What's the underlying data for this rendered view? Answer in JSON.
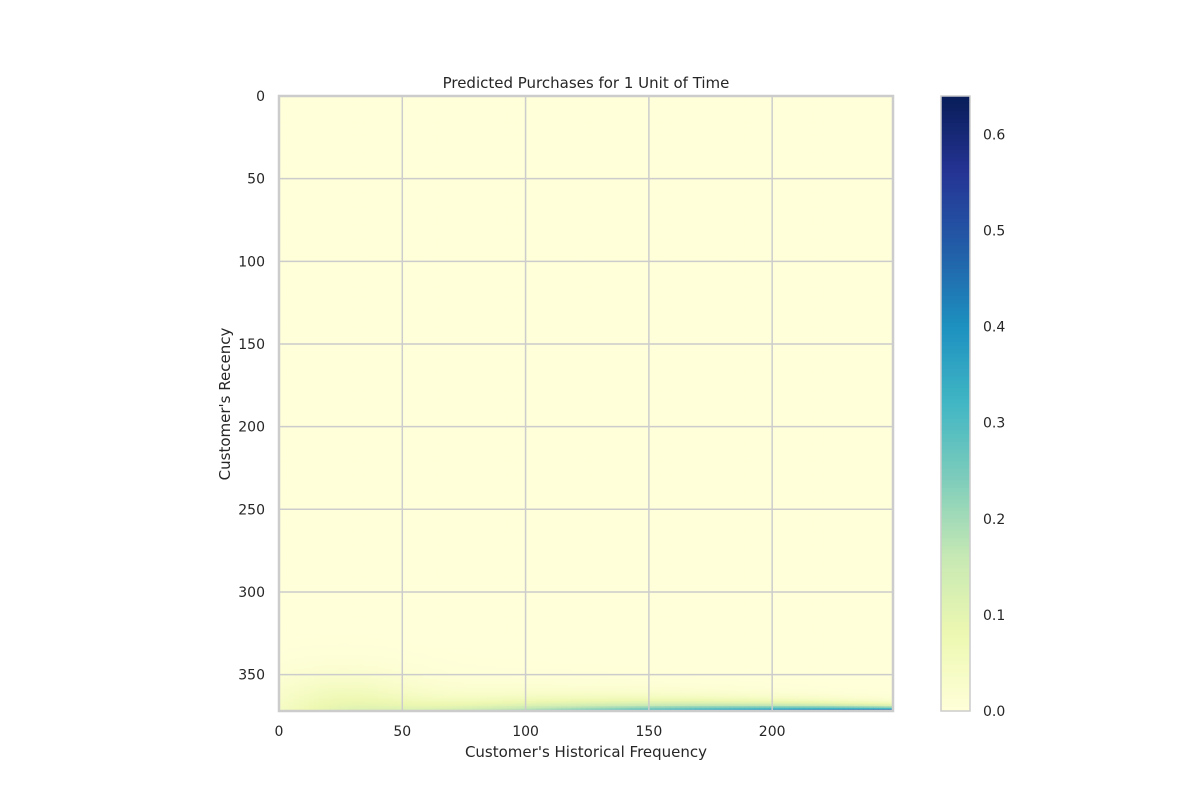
{
  "chart_data": {
    "type": "heatmap",
    "title": "Predicted Purchases for 1 Unit of Time",
    "xlabel": "Customer's Historical Frequency",
    "ylabel": "Customer's Recency",
    "xlim": [
      0,
      249
    ],
    "ylim": [
      372,
      0
    ],
    "x_ticks": [
      0,
      50,
      100,
      150,
      200
    ],
    "y_ticks": [
      0,
      50,
      100,
      150,
      200,
      250,
      300,
      350
    ],
    "grid": true,
    "colormap": "YlGnBu",
    "colorbar": {
      "vmin": 0.0,
      "vmax": 0.64,
      "ticks": [
        0.0,
        0.1,
        0.2,
        0.3,
        0.4,
        0.5,
        0.6
      ],
      "tick_labels": [
        "0.0",
        "0.1",
        "0.2",
        "0.3",
        "0.4",
        "0.5",
        "0.6"
      ]
    },
    "value_description": "Predicted purchases are near 0 across most frequency/recency combinations; values rise only at the highest recency (bottom rows), increasing with frequency to about 0.64 at frequency 249 and recency 372.",
    "sample_values": [
      {
        "frequency": 0,
        "recency": 0,
        "value": 0.0
      },
      {
        "frequency": 249,
        "recency": 0,
        "value": 0.0
      },
      {
        "frequency": 25,
        "recency": 355,
        "value": 0.06
      },
      {
        "frequency": 100,
        "recency": 370,
        "value": 0.2
      },
      {
        "frequency": 150,
        "recency": 370,
        "value": 0.33
      },
      {
        "frequency": 200,
        "recency": 370,
        "value": 0.45
      },
      {
        "frequency": 249,
        "recency": 372,
        "value": 0.64
      }
    ],
    "colors": {
      "grid": "#cccccc",
      "frame": "#cccccc",
      "text": "#262626"
    }
  }
}
